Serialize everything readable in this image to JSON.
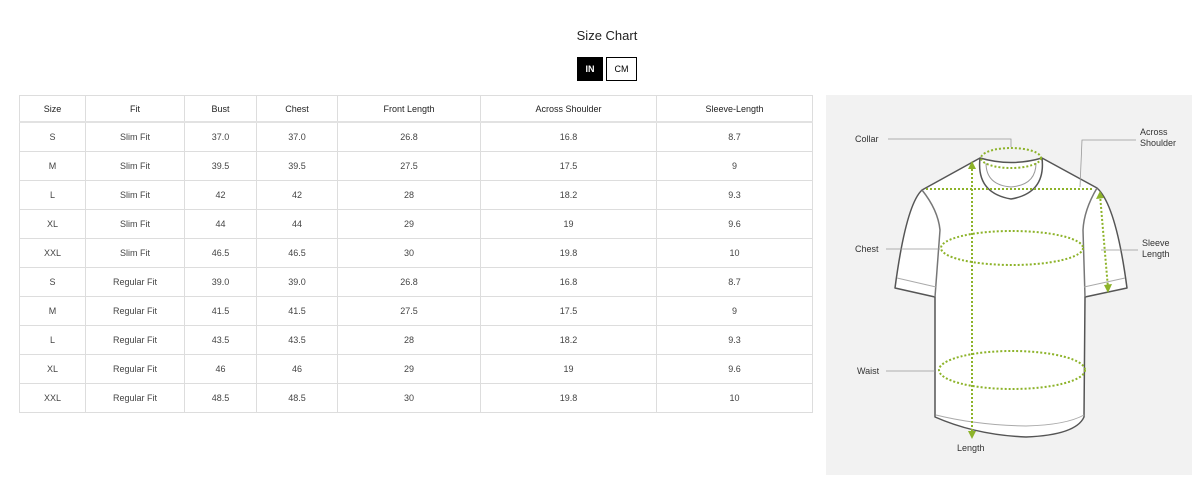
{
  "title": "Size Chart",
  "units": {
    "options": [
      "IN",
      "CM"
    ],
    "selected": "IN"
  },
  "table": {
    "headers": [
      "Size",
      "Fit",
      "Bust",
      "Chest",
      "Front Length",
      "Across Shoulder",
      "Sleeve-Length"
    ],
    "rows": [
      [
        "S",
        "Slim Fit",
        "37.0",
        "37.0",
        "26.8",
        "16.8",
        "8.7"
      ],
      [
        "M",
        "Slim Fit",
        "39.5",
        "39.5",
        "27.5",
        "17.5",
        "9"
      ],
      [
        "L",
        "Slim Fit",
        "42",
        "42",
        "28",
        "18.2",
        "9.3"
      ],
      [
        "XL",
        "Slim Fit",
        "44",
        "44",
        "29",
        "19",
        "9.6"
      ],
      [
        "XXL",
        "Slim Fit",
        "46.5",
        "46.5",
        "30",
        "19.8",
        "10"
      ],
      [
        "S",
        "Regular Fit",
        "39.0",
        "39.0",
        "26.8",
        "16.8",
        "8.7"
      ],
      [
        "M",
        "Regular Fit",
        "41.5",
        "41.5",
        "27.5",
        "17.5",
        "9"
      ],
      [
        "L",
        "Regular Fit",
        "43.5",
        "43.5",
        "28",
        "18.2",
        "9.3"
      ],
      [
        "XL",
        "Regular Fit",
        "46",
        "46",
        "29",
        "19",
        "9.6"
      ],
      [
        "XXL",
        "Regular Fit",
        "48.5",
        "48.5",
        "30",
        "19.8",
        "10"
      ]
    ]
  },
  "diagram": {
    "labels": {
      "collar": "Collar",
      "across_shoulder": "Across Shoulder",
      "chest": "Chest",
      "sleeve_length": "Sleeve Length",
      "waist": "Waist",
      "length": "Length"
    },
    "accent_color": "#8db32a"
  }
}
